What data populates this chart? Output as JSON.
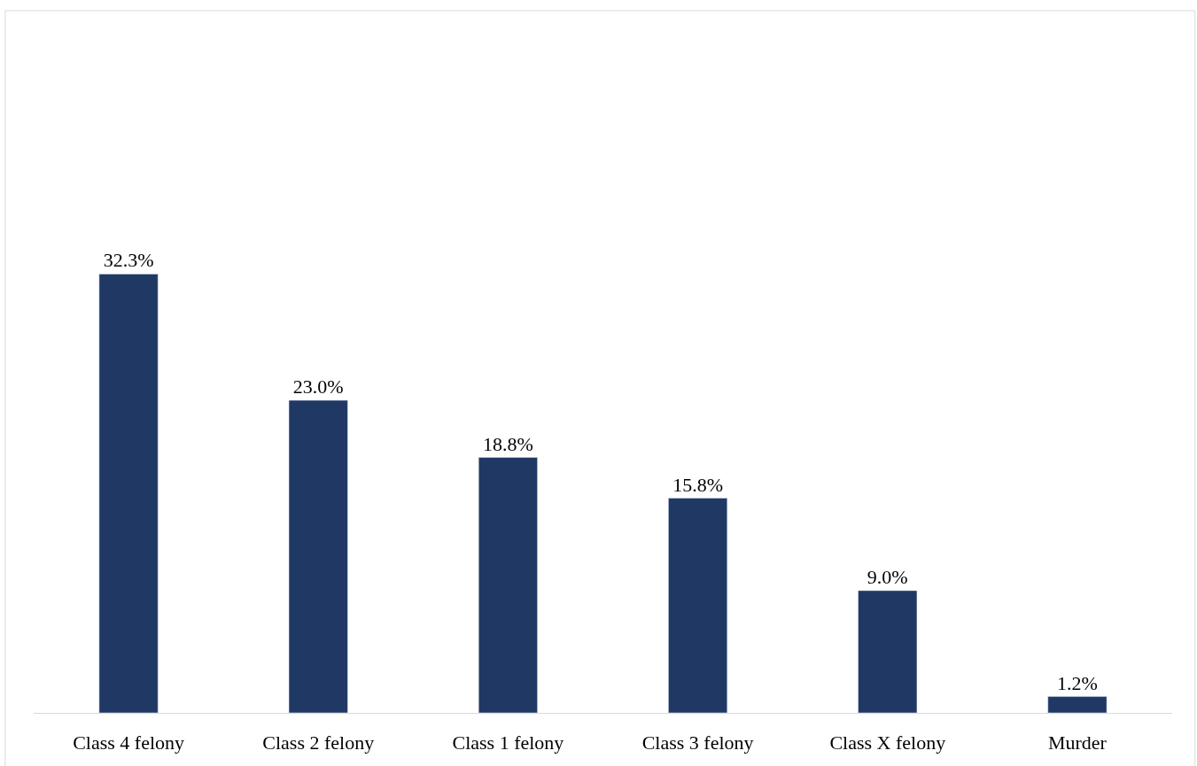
{
  "chart_data": {
    "type": "bar",
    "categories": [
      "Class 4 felony",
      "Class 2 felony",
      "Class 1 felony",
      "Class 3 felony",
      "Class X felony",
      "Murder"
    ],
    "values": [
      32.3,
      23.0,
      18.8,
      15.8,
      9.0,
      1.2
    ],
    "value_labels": [
      "32.3%",
      "23.0%",
      "18.8%",
      "15.8%",
      "9.0%",
      "1.2%"
    ],
    "color": "#203864"
  }
}
